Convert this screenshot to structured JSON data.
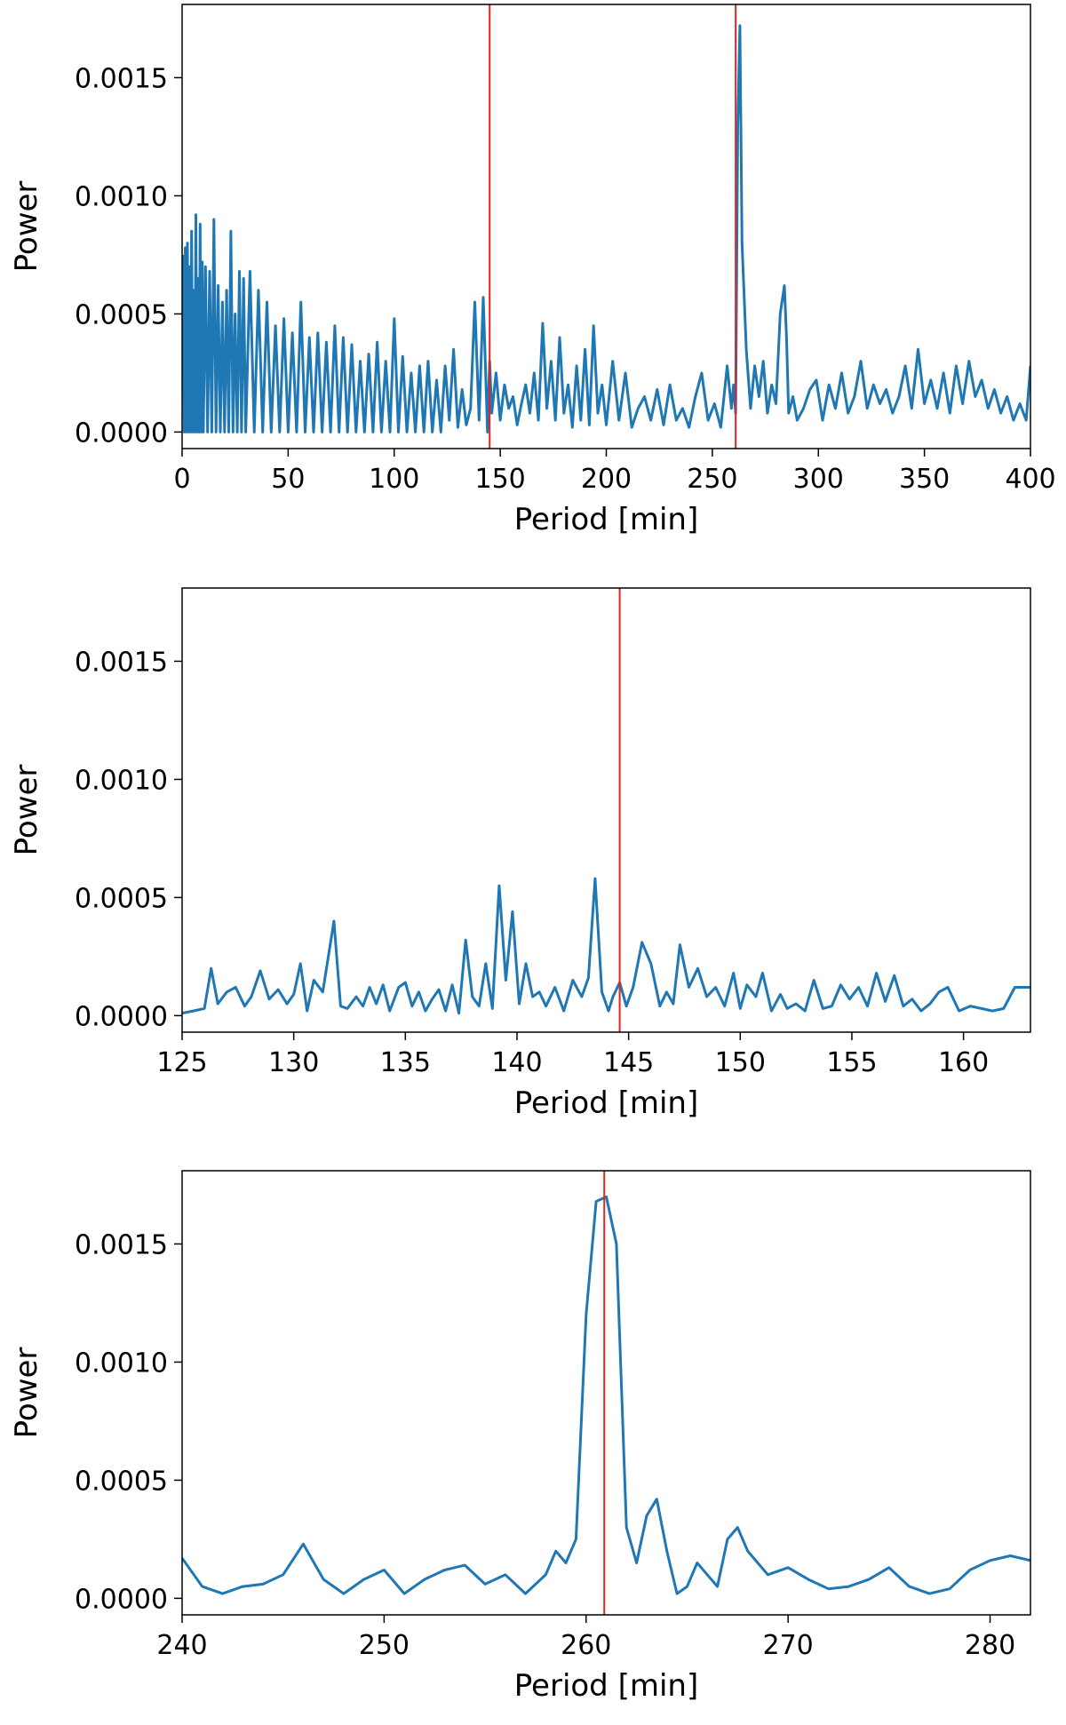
{
  "figure": {
    "colors": {
      "series": "#1f77b4",
      "marker_line": "#e8231f",
      "axes": "#000000",
      "background": "#ffffff"
    }
  },
  "chart_data": [
    {
      "type": "line",
      "xlabel": "Period [min]",
      "ylabel": "Power",
      "xlim": [
        0,
        400
      ],
      "ylim": [
        -7e-05,
        0.00181
      ],
      "xticks": [
        0,
        50,
        100,
        150,
        200,
        250,
        300,
        350,
        400
      ],
      "xtick_labels": [
        "0",
        "50",
        "100",
        "150",
        "200",
        "250",
        "300",
        "350",
        "400"
      ],
      "yticks": [
        0,
        0.0005,
        0.001,
        0.0015
      ],
      "ytick_labels": [
        "0.0000",
        "0.0005",
        "0.0010",
        "0.0015"
      ],
      "grid": false,
      "vlines": [
        145.0,
        261.0
      ],
      "series": [
        {
          "values_note_free": true,
          "x": [
            0.5,
            1,
            1.5,
            2,
            2.5,
            3,
            3.5,
            4,
            4.5,
            5,
            5.5,
            6,
            6.5,
            7,
            7.5,
            8,
            8.5,
            9,
            9.5,
            10,
            11,
            12,
            13,
            14,
            15,
            16,
            17,
            18,
            19,
            20,
            21,
            22,
            23,
            24,
            25,
            26,
            27,
            28,
            29,
            30,
            32,
            34,
            36,
            38,
            40,
            42,
            44,
            46,
            48,
            50,
            52,
            54,
            56,
            58,
            60,
            62,
            64,
            66,
            68,
            70,
            72,
            74,
            76,
            78,
            80,
            82,
            84,
            86,
            88,
            90,
            92,
            94,
            96,
            98,
            100,
            102,
            104,
            106,
            108,
            110,
            112,
            114,
            116,
            118,
            120,
            122,
            124,
            126,
            128,
            130,
            132,
            134,
            136,
            138,
            140,
            142,
            144,
            145,
            146,
            148,
            150,
            152,
            154,
            156,
            158,
            160,
            162,
            164,
            166,
            168,
            170,
            172,
            174,
            176,
            178,
            180,
            182,
            184,
            186,
            188,
            190,
            192,
            194,
            196,
            198,
            200,
            203,
            206,
            209,
            212,
            215,
            218,
            221,
            224,
            227,
            230,
            233,
            236,
            239,
            242,
            245,
            248,
            251,
            254,
            257,
            259,
            260,
            261,
            262,
            263,
            264,
            266,
            268,
            270,
            272,
            274,
            276,
            278,
            280,
            282,
            284,
            285,
            286,
            288,
            290,
            293,
            296,
            299,
            302,
            305,
            308,
            311,
            314,
            317,
            320,
            323,
            326,
            329,
            332,
            335,
            338,
            341,
            344,
            347,
            350,
            353,
            356,
            359,
            362,
            365,
            368,
            371,
            374,
            377,
            380,
            383,
            386,
            389,
            392,
            395,
            398,
            400
          ],
          "y": [
            0.00075,
            0.0,
            0.00078,
            0.0,
            0.0008,
            0.0,
            0.0007,
            0.0,
            0.00085,
            0.0,
            0.0006,
            0.0,
            0.00092,
            0.0,
            0.00065,
            0.0,
            0.00088,
            0.0,
            0.00072,
            0.0,
            0.0007,
            0.0,
            0.00068,
            0.0,
            0.0009,
            0.0,
            0.00062,
            0.0,
            0.00055,
            0.0,
            0.0006,
            0.0,
            0.00085,
            0.0,
            0.0005,
            0.0,
            0.00068,
            0.0,
            0.00065,
            0.0,
            0.00068,
            0.0,
            0.0006,
            0.0,
            0.00055,
            0.0,
            0.00045,
            0.0,
            0.00048,
            0.0,
            0.00042,
            0.0,
            0.00055,
            0.0,
            0.0004,
            0.0,
            0.00042,
            0.0,
            0.00038,
            0.0,
            0.00045,
            0.0,
            0.0004,
            0.0,
            0.00037,
            0.0,
            0.0003,
            0.0,
            0.00033,
            0.0,
            0.00038,
            0.0,
            0.0003,
            0.0,
            0.00048,
            0.0,
            0.00032,
            0.0,
            0.00025,
            0.0,
            0.00028,
            0.0,
            0.0003,
            0.0,
            0.00022,
            0.0,
            0.00028,
            5e-05,
            0.00035,
            2e-05,
            0.00018,
            3e-05,
            0.0001,
            0.00055,
            5e-05,
            0.00057,
            0.0,
            0.0003,
            8e-05,
            0.00025,
            5e-05,
            0.0002,
            0.0001,
            0.00015,
            3e-05,
            0.00012,
            0.0002,
            8e-05,
            0.00025,
            5e-05,
            0.00046,
            0.0001,
            0.0003,
            5e-05,
            0.0004,
            8e-05,
            0.0002,
            2e-05,
            0.00028,
            5e-05,
            0.00035,
            3e-05,
            0.00045,
            8e-05,
            0.0002,
            3e-05,
            0.0003,
            5e-05,
            0.00025,
            2e-05,
            0.0001,
            0.00015,
            5e-05,
            0.00018,
            3e-05,
            0.0002,
            5e-05,
            0.0001,
            2e-05,
            0.00015,
            0.00025,
            5e-05,
            0.00012,
            2e-05,
            0.00028,
            0.0001,
            0.0002,
            8e-05,
            0.0013,
            0.00172,
            0.0008,
            0.00035,
            0.0001,
            0.00028,
            0.00015,
            0.0003,
            8e-05,
            0.0002,
            0.00012,
            0.0005,
            0.00062,
            0.0004,
            8e-05,
            0.00015,
            5e-05,
            0.0001,
            0.00018,
            0.00022,
            5e-05,
            0.0002,
            0.0001,
            0.00025,
            8e-05,
            0.00015,
            0.0003,
            0.0001,
            0.0002,
            0.00012,
            0.00018,
            8e-05,
            0.00015,
            0.00028,
            0.0001,
            0.00035,
            0.00012,
            0.00022,
            0.0001,
            0.00025,
            8e-05,
            0.00028,
            0.00012,
            0.0003,
            0.00015,
            0.00022,
            0.0001,
            0.00018,
            8e-05,
            0.00015,
            5e-05,
            0.00012,
            5e-05,
            0.00028
          ]
        }
      ]
    },
    {
      "type": "line",
      "xlabel": "Period [min]",
      "ylabel": "Power",
      "xlim": [
        125,
        163
      ],
      "ylim": [
        -7e-05,
        0.00181
      ],
      "xticks": [
        125,
        130,
        135,
        140,
        145,
        150,
        155,
        160
      ],
      "xtick_labels": [
        "125",
        "130",
        "135",
        "140",
        "145",
        "150",
        "155",
        "160"
      ],
      "yticks": [
        0,
        0.0005,
        0.001,
        0.0015
      ],
      "ytick_labels": [
        "0.0000",
        "0.0005",
        "0.0010",
        "0.0015"
      ],
      "grid": false,
      "vlines": [
        144.6
      ],
      "series": [
        {
          "x": [
            125,
            125.5,
            126,
            126.3,
            126.6,
            127,
            127.4,
            127.8,
            128.1,
            128.5,
            128.9,
            129.3,
            129.7,
            130.0,
            130.3,
            130.6,
            130.9,
            131.3,
            131.8,
            132.1,
            132.4,
            132.8,
            133.1,
            133.4,
            133.7,
            134.0,
            134.3,
            134.7,
            135.0,
            135.3,
            135.6,
            135.9,
            136.2,
            136.5,
            136.8,
            137.1,
            137.4,
            137.7,
            138.0,
            138.3,
            138.6,
            138.9,
            139.2,
            139.5,
            139.8,
            140.1,
            140.4,
            140.7,
            141.0,
            141.3,
            141.7,
            142.1,
            142.5,
            142.9,
            143.2,
            143.5,
            143.8,
            144.1,
            144.3,
            144.6,
            144.9,
            145.2,
            145.6,
            146.0,
            146.4,
            146.7,
            147.0,
            147.3,
            147.7,
            148.1,
            148.5,
            148.9,
            149.3,
            149.7,
            150.0,
            150.3,
            150.7,
            151.0,
            151.4,
            151.8,
            152.1,
            152.5,
            152.9,
            153.3,
            153.7,
            154.1,
            154.5,
            154.9,
            155.3,
            155.7,
            156.1,
            156.5,
            156.9,
            157.3,
            157.7,
            158.1,
            158.5,
            158.9,
            159.3,
            159.8,
            160.3,
            160.8,
            161.3,
            161.8,
            162.3,
            163
          ],
          "y": [
            1e-05,
            2e-05,
            3e-05,
            0.0002,
            5e-05,
            0.0001,
            0.00012,
            4e-05,
            8e-05,
            0.00019,
            7e-05,
            0.00011,
            5e-05,
            9e-05,
            0.00022,
            2e-05,
            0.00015,
            0.0001,
            0.0004,
            4e-05,
            3e-05,
            8e-05,
            4e-05,
            0.00012,
            5e-05,
            0.00013,
            2e-05,
            0.00012,
            0.00014,
            4e-05,
            0.0001,
            2e-05,
            7e-05,
            0.00011,
            2e-05,
            0.00013,
            1e-05,
            0.00032,
            8e-05,
            4e-05,
            0.00022,
            3e-05,
            0.00055,
            0.00015,
            0.00044,
            5e-05,
            0.00022,
            8e-05,
            0.0001,
            4e-05,
            0.00012,
            2e-05,
            0.00015,
            8e-05,
            0.00016,
            0.00058,
            0.0001,
            2e-05,
            8e-05,
            0.00014,
            4e-05,
            0.00012,
            0.00031,
            0.00022,
            4e-05,
            0.0001,
            5e-05,
            0.0003,
            0.00012,
            0.0002,
            8e-05,
            0.00012,
            4e-05,
            0.00018,
            3e-05,
            0.00013,
            8e-05,
            0.00018,
            2e-05,
            9e-05,
            3e-05,
            5e-05,
            2e-05,
            0.00015,
            3e-05,
            4e-05,
            0.00013,
            7e-05,
            0.00012,
            4e-05,
            0.00018,
            6e-05,
            0.00017,
            4e-05,
            7e-05,
            2e-05,
            5e-05,
            0.0001,
            0.00012,
            2e-05,
            4e-05,
            3e-05,
            2e-05,
            3e-05,
            0.00012,
            0.00012
          ]
        }
      ]
    },
    {
      "type": "line",
      "xlabel": "Period [min]",
      "ylabel": "Power",
      "xlim": [
        240,
        282
      ],
      "ylim": [
        -7e-05,
        0.00181
      ],
      "xticks": [
        240,
        250,
        260,
        270,
        280
      ],
      "xtick_labels": [
        "240",
        "250",
        "260",
        "270",
        "280"
      ],
      "yticks": [
        0,
        0.0005,
        0.001,
        0.0015
      ],
      "ytick_labels": [
        "0.0000",
        "0.0005",
        "0.0010",
        "0.0015"
      ],
      "grid": false,
      "vlines": [
        260.9
      ],
      "series": [
        {
          "x": [
            240,
            241,
            242,
            243,
            244,
            245,
            246,
            247,
            248,
            249,
            250,
            251,
            252,
            253,
            254,
            255,
            256,
            257,
            258,
            258.5,
            259,
            259.5,
            260,
            260.5,
            261,
            261.5,
            262,
            262.5,
            263,
            263.5,
            264,
            264.5,
            265,
            265.5,
            266,
            266.5,
            267,
            267.5,
            268,
            268.5,
            269,
            270,
            271,
            272,
            273,
            274,
            275,
            276,
            277,
            278,
            279,
            280,
            281,
            282
          ],
          "y": [
            0.00017,
            5e-05,
            2e-05,
            5e-05,
            6e-05,
            0.0001,
            0.00023,
            8e-05,
            2e-05,
            8e-05,
            0.00012,
            2e-05,
            8e-05,
            0.00012,
            0.00014,
            6e-05,
            0.0001,
            2e-05,
            0.0001,
            0.0002,
            0.00015,
            0.00025,
            0.0012,
            0.00168,
            0.0017,
            0.0015,
            0.0003,
            0.00015,
            0.00035,
            0.00042,
            0.0002,
            2e-05,
            5e-05,
            0.00015,
            0.0001,
            5e-05,
            0.00025,
            0.0003,
            0.0002,
            0.00015,
            0.0001,
            0.00013,
            8e-05,
            4e-05,
            5e-05,
            8e-05,
            0.00013,
            5e-05,
            2e-05,
            4e-05,
            0.00012,
            0.00016,
            0.00018,
            0.00016
          ]
        }
      ]
    }
  ]
}
